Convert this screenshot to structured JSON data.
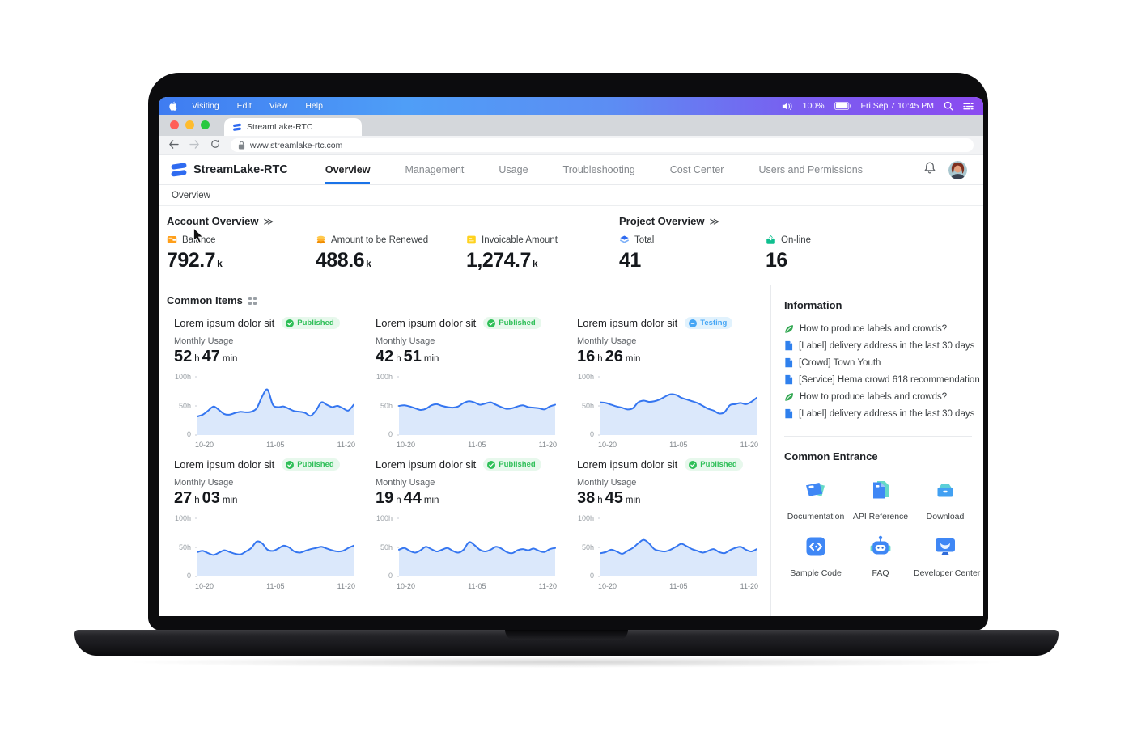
{
  "colors": {
    "accent": "#1a73e8",
    "published_green": "#2fbf58",
    "testing_blue": "#46a6f5",
    "chart_line": "#3576f0",
    "chart_fill": "#dbe8fb",
    "metric_orange": "#ff9f1a",
    "metric_yellow": "#ffd21e",
    "metric_blue": "#2f6bf0",
    "metric_green": "#12b886"
  },
  "menu_bar": {
    "menus": [
      "Visiting",
      "Edit",
      "View",
      "Help"
    ],
    "battery": "100%",
    "clock": "Fri Sep 7 10:45 PM"
  },
  "browser": {
    "tab_title": "StreamLake-RTC",
    "url": "www.streamlake-rtc.com"
  },
  "site_header": {
    "brand": "StreamLake-RTC",
    "nav": [
      "Overview",
      "Management",
      "Usage",
      "Troubleshooting",
      "Cost Center",
      "Users and Permissions"
    ],
    "active": "Overview"
  },
  "breadcrumb": {
    "label": "Overview"
  },
  "account_overview": {
    "title": "Account Overview",
    "chevron": "≫",
    "metrics": [
      {
        "label": "Balance",
        "value": "792.7",
        "unit": "k",
        "icon": "wallet-orange"
      },
      {
        "label": "Amount to be Renewed",
        "value": "488.6",
        "unit": "k",
        "icon": "coins-orange"
      },
      {
        "label": "Invoicable Amount",
        "value": "1,274.7",
        "unit": "k",
        "icon": "invoice-yellow"
      }
    ]
  },
  "project_overview": {
    "title": "Project Overview",
    "chevron": "≫",
    "metrics": [
      {
        "label": "Total",
        "value": "41",
        "icon": "layers-blue"
      },
      {
        "label": "On-line",
        "value": "16",
        "icon": "online-green"
      }
    ]
  },
  "units": {
    "hours": "h",
    "minutes": "min"
  },
  "common_items": {
    "title": "Common Items",
    "cards": [
      {
        "title": "Lorem ipsum dolor sit",
        "status": "Published",
        "status_type": "published",
        "usage_label": "Monthly Usage",
        "hours": "52",
        "minutes": "47"
      },
      {
        "title": "Lorem ipsum dolor sit",
        "status": "Published",
        "status_type": "published",
        "usage_label": "Monthly Usage",
        "hours": "42",
        "minutes": "51"
      },
      {
        "title": "Lorem ipsum dolor sit",
        "status": "Testing",
        "status_type": "testing",
        "usage_label": "Monthly Usage",
        "hours": "16",
        "minutes": "26"
      },
      {
        "title": "Lorem ipsum dolor sit",
        "status": "Published",
        "status_type": "published",
        "usage_label": "Monthly Usage",
        "hours": "27",
        "minutes": "03"
      },
      {
        "title": "Lorem ipsum dolor sit",
        "status": "Published",
        "status_type": "published",
        "usage_label": "Monthly Usage",
        "hours": "19",
        "minutes": "44"
      },
      {
        "title": "Lorem ipsum dolor sit",
        "status": "Published",
        "status_type": "published",
        "usage_label": "Monthly Usage",
        "hours": "38",
        "minutes": "45"
      }
    ]
  },
  "chart_axes": {
    "y": [
      "100h",
      "50h",
      "0"
    ],
    "x": [
      "10-20",
      "11-05",
      "11-20"
    ]
  },
  "chart_data": [
    {
      "type": "area",
      "title": "Monthly Usage card 1",
      "ylabel": "hours",
      "ylim": [
        0,
        100
      ],
      "x_ticks": [
        "10-20",
        "11-05",
        "11-20"
      ],
      "y_ticks": [
        "100h",
        "50h",
        "0"
      ],
      "points": [
        32,
        35,
        42,
        49,
        43,
        36,
        35,
        38,
        40,
        39,
        40,
        46,
        66,
        78,
        52,
        48,
        49,
        45,
        41,
        40,
        38,
        33,
        42,
        56,
        52,
        48,
        50,
        46,
        42,
        52
      ]
    },
    {
      "type": "area",
      "title": "Monthly Usage card 2",
      "ylabel": "hours",
      "ylim": [
        0,
        100
      ],
      "x_ticks": [
        "10-20",
        "11-05",
        "11-20"
      ],
      "y_ticks": [
        "100h",
        "50h",
        "0"
      ],
      "points": [
        50,
        51,
        49,
        46,
        43,
        45,
        51,
        53,
        50,
        48,
        47,
        49,
        55,
        58,
        56,
        52,
        54,
        56,
        52,
        48,
        45,
        46,
        49,
        51,
        48,
        47,
        46,
        44,
        49,
        52
      ]
    },
    {
      "type": "area",
      "title": "Monthly Usage card 3",
      "ylabel": "hours",
      "ylim": [
        0,
        100
      ],
      "x_ticks": [
        "10-20",
        "11-05",
        "11-20"
      ],
      "y_ticks": [
        "100h",
        "50h",
        "0"
      ],
      "points": [
        56,
        55,
        52,
        49,
        47,
        44,
        46,
        56,
        59,
        57,
        58,
        61,
        66,
        70,
        69,
        64,
        61,
        58,
        55,
        50,
        45,
        42,
        37,
        39,
        51,
        53,
        55,
        53,
        57,
        64
      ]
    },
    {
      "type": "area",
      "title": "Monthly Usage card 4",
      "ylabel": "hours",
      "ylim": [
        0,
        100
      ],
      "x_ticks": [
        "10-20",
        "11-05",
        "11-20"
      ],
      "y_ticks": [
        "100h",
        "50h",
        "0"
      ],
      "points": [
        42,
        44,
        40,
        37,
        41,
        45,
        42,
        39,
        38,
        43,
        49,
        60,
        57,
        46,
        44,
        48,
        53,
        50,
        43,
        41,
        44,
        47,
        49,
        51,
        48,
        45,
        43,
        44,
        49,
        53
      ]
    },
    {
      "type": "area",
      "title": "Monthly Usage card 5",
      "ylabel": "hours",
      "ylim": [
        0,
        100
      ],
      "x_ticks": [
        "10-20",
        "11-05",
        "11-20"
      ],
      "y_ticks": [
        "100h",
        "50h",
        "0"
      ],
      "points": [
        46,
        49,
        44,
        41,
        45,
        51,
        47,
        43,
        46,
        49,
        44,
        41,
        46,
        59,
        54,
        46,
        43,
        46,
        51,
        48,
        42,
        40,
        45,
        47,
        45,
        48,
        44,
        42,
        47,
        49
      ]
    },
    {
      "type": "area",
      "title": "Monthly Usage card 6",
      "ylabel": "hours",
      "ylim": [
        0,
        100
      ],
      "x_ticks": [
        "10-20",
        "11-05",
        "11-20"
      ],
      "y_ticks": [
        "100h",
        "50h",
        "0"
      ],
      "points": [
        40,
        42,
        46,
        43,
        39,
        44,
        49,
        57,
        63,
        57,
        47,
        44,
        43,
        46,
        51,
        56,
        52,
        47,
        44,
        41,
        44,
        47,
        42,
        40,
        45,
        49,
        51,
        46,
        43,
        47
      ]
    }
  ],
  "information": {
    "title": "Information",
    "items": [
      {
        "icon": "leaf",
        "text": "How to produce labels and crowds?"
      },
      {
        "icon": "doc",
        "text": "【Label】 delivery address in the last 30 days"
      },
      {
        "icon": "doc",
        "text": "【Crowd】 Town Youth"
      },
      {
        "icon": "doc",
        "text": "【Service】 Hema crowd 618 recommendation"
      },
      {
        "icon": "leaf",
        "text": "How to produce labels and crowds?"
      },
      {
        "icon": "doc",
        "text": "【Label】 delivery address in the last 30 days"
      }
    ]
  },
  "common_entrance": {
    "title": "Common Entrance",
    "items": [
      {
        "icon": "documentation",
        "label": "Documentation"
      },
      {
        "icon": "api-reference",
        "label": "API Reference"
      },
      {
        "icon": "download",
        "label": "Download"
      },
      {
        "icon": "sample-code",
        "label": "Sample Code"
      },
      {
        "icon": "faq",
        "label": "FAQ"
      },
      {
        "icon": "developer-center",
        "label": "Developer Center"
      }
    ]
  }
}
